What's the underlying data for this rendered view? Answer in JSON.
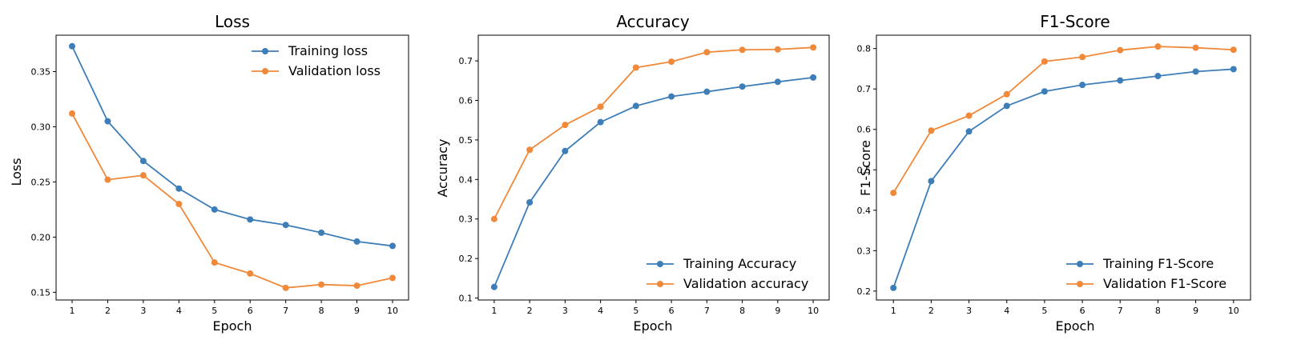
{
  "colors": {
    "training": "#3d7db8",
    "validation": "#f0893a"
  },
  "chart_data": [
    {
      "type": "line",
      "title": "Loss",
      "xlabel": "Epoch",
      "ylabel": "Loss",
      "x": [
        1,
        2,
        3,
        4,
        5,
        6,
        7,
        8,
        9,
        10
      ],
      "xlim": [
        0.55,
        10.45
      ],
      "ylim": [
        0.143,
        0.383
      ],
      "yticks": [
        0.15,
        0.2,
        0.25,
        0.3,
        0.35
      ],
      "ytick_labels": [
        "0.15",
        "0.20",
        "0.25",
        "0.30",
        "0.35"
      ],
      "xtick_labels": [
        "1",
        "2",
        "3",
        "4",
        "5",
        "6",
        "7",
        "8",
        "9",
        "10"
      ],
      "legend": "upper-right",
      "series": [
        {
          "name": "Training loss",
          "values": [
            0.373,
            0.305,
            0.269,
            0.244,
            0.225,
            0.216,
            0.211,
            0.204,
            0.196,
            0.192
          ]
        },
        {
          "name": "Validation loss",
          "values": [
            0.312,
            0.252,
            0.256,
            0.23,
            0.177,
            0.167,
            0.154,
            0.157,
            0.156,
            0.163
          ]
        }
      ]
    },
    {
      "type": "line",
      "title": "Accuracy",
      "xlabel": "Epoch",
      "ylabel": "Accuracy",
      "x": [
        1,
        2,
        3,
        4,
        5,
        6,
        7,
        8,
        9,
        10
      ],
      "xlim": [
        0.55,
        10.45
      ],
      "ylim": [
        0.095,
        0.765
      ],
      "yticks": [
        0.1,
        0.2,
        0.3,
        0.4,
        0.5,
        0.6,
        0.7
      ],
      "ytick_labels": [
        "0.1",
        "0.2",
        "0.3",
        "0.4",
        "0.5",
        "0.6",
        "0.7"
      ],
      "xtick_labels": [
        "1",
        "2",
        "3",
        "4",
        "5",
        "6",
        "7",
        "8",
        "9",
        "10"
      ],
      "legend": "lower-right",
      "series": [
        {
          "name": "Training Accuracy",
          "values": [
            0.128,
            0.342,
            0.472,
            0.545,
            0.586,
            0.61,
            0.622,
            0.635,
            0.647,
            0.658
          ]
        },
        {
          "name": "Validation accuracy",
          "values": [
            0.3,
            0.475,
            0.538,
            0.584,
            0.683,
            0.698,
            0.722,
            0.728,
            0.729,
            0.734
          ]
        }
      ]
    },
    {
      "type": "line",
      "title": "F1-Score",
      "xlabel": "Epoch",
      "ylabel": "F1-Score",
      "x": [
        1,
        2,
        3,
        4,
        5,
        6,
        7,
        8,
        9,
        10
      ],
      "xlim": [
        0.55,
        10.45
      ],
      "ylim": [
        0.178,
        0.833
      ],
      "yticks": [
        0.2,
        0.3,
        0.4,
        0.5,
        0.6,
        0.7,
        0.8
      ],
      "ytick_labels": [
        "0.2",
        "0.3",
        "0.4",
        "0.5",
        "0.6",
        "0.7",
        "0.8"
      ],
      "xtick_labels": [
        "1",
        "2",
        "3",
        "4",
        "5",
        "6",
        "7",
        "8",
        "9",
        "10"
      ],
      "legend": "lower-right",
      "series": [
        {
          "name": "Training F1-Score",
          "values": [
            0.208,
            0.472,
            0.595,
            0.658,
            0.694,
            0.71,
            0.721,
            0.732,
            0.743,
            0.749
          ]
        },
        {
          "name": "Validation F1-Score",
          "values": [
            0.443,
            0.597,
            0.634,
            0.687,
            0.768,
            0.779,
            0.796,
            0.805,
            0.802,
            0.797
          ]
        }
      ]
    }
  ]
}
